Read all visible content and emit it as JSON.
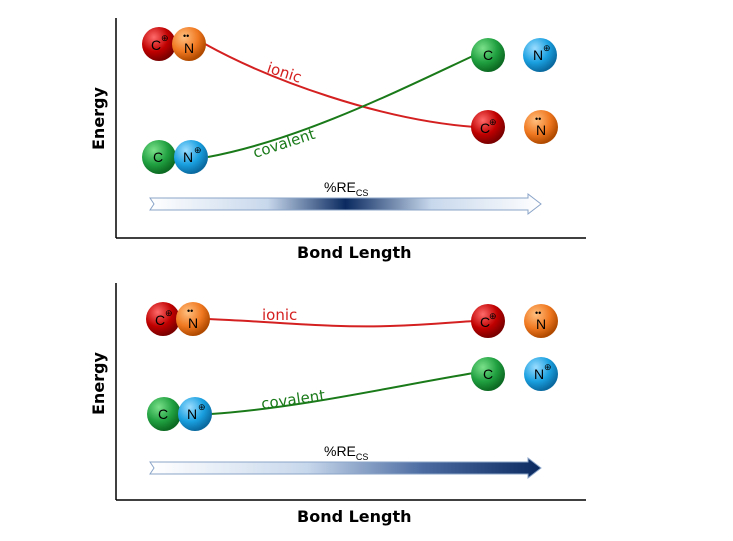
{
  "colors": {
    "carbon_cation": "#c00000",
    "nitrogen_anion": "#f07820",
    "carbon_neutral": "#20a040",
    "nitrogen_cation": "#1aa0e0",
    "ionic_curve": "#d42020",
    "covalent_curve": "#1a7a1a",
    "arrow_dark": "#0a2a60"
  },
  "panels": [
    {
      "ylabel": "Energy",
      "xlabel": "Bond Length",
      "ionic_label": "ionic",
      "covalent_label": "covalent",
      "re_label": {
        "text": "%RE",
        "sub": "CS"
      },
      "arrow_style": "gradient-peak-middle"
    },
    {
      "ylabel": "Energy",
      "xlabel": "Bond Length",
      "ionic_label": "ionic",
      "covalent_label": "covalent",
      "re_label": {
        "text": "%RE",
        "sub": "CS"
      },
      "arrow_style": "gradient-increasing"
    }
  ],
  "atoms": {
    "carbon": "C",
    "nitrogen": "N",
    "plus_sign": "⊕",
    "lone_pair": "••"
  }
}
